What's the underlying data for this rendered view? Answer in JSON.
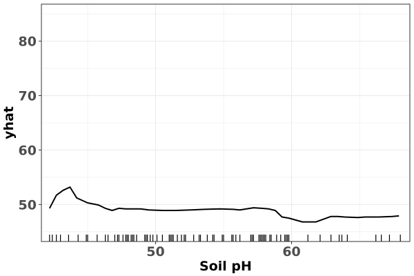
{
  "chart_data": {
    "type": "line",
    "title": "",
    "xlabel": "Soil pH",
    "ylabel": "yhat",
    "xlim": [
      41.6,
      68.7
    ],
    "ylim": [
      43.2,
      86.8
    ],
    "x_ticks": [
      50,
      60
    ],
    "y_ticks": [
      50,
      60,
      70,
      80
    ],
    "x_minor_ticks": [
      45,
      55,
      65
    ],
    "y_minor_ticks": [
      45,
      55,
      65,
      75,
      85
    ],
    "grid": true,
    "legend": "none",
    "series": [
      {
        "x": [
          42.2,
          42.7,
          43.2,
          43.7,
          44.2,
          45.0,
          45.8,
          46.3,
          46.8,
          47.3,
          47.8,
          48.3,
          48.9,
          49.5,
          50.5,
          51.5,
          52.6,
          53.6,
          54.7,
          55.7,
          56.2,
          57.2,
          57.8,
          58.3,
          58.8,
          59.3,
          59.8,
          60.8,
          61.8,
          62.9,
          63.4,
          63.9,
          64.9,
          65.4,
          66.4,
          67.4,
          67.9
        ],
        "y": [
          49.3,
          51.7,
          52.6,
          53.2,
          51.2,
          50.3,
          49.9,
          49.3,
          48.9,
          49.3,
          49.2,
          49.2,
          49.2,
          49.0,
          48.9,
          48.9,
          49.0,
          49.1,
          49.2,
          49.1,
          49.0,
          49.4,
          49.3,
          49.2,
          48.9,
          47.7,
          47.5,
          46.8,
          46.8,
          47.8,
          47.8,
          47.7,
          47.6,
          47.7,
          47.7,
          47.8,
          47.9
        ]
      }
    ],
    "rug": [
      42.2,
      42.4,
      42.7,
      43.0,
      43.6,
      44.3,
      44.9,
      45.0,
      45.7,
      46.3,
      46.5,
      47.0,
      47.2,
      47.3,
      47.6,
      47.8,
      47.9,
      48.0,
      48.2,
      48.3,
      48.4,
      48.6,
      49.2,
      49.3,
      49.4,
      49.6,
      49.8,
      50.1,
      50.5,
      51.0,
      51.1,
      51.2,
      51.3,
      51.6,
      51.9,
      52.1,
      52.2,
      52.8,
      53.2,
      53.3,
      53.8,
      54.2,
      54.3,
      54.9,
      55.0,
      55.6,
      55.7,
      55.9,
      56.2,
      57.0,
      57.1,
      57.2,
      57.6,
      57.7,
      57.8,
      57.9,
      58.0,
      58.1,
      58.4,
      58.5,
      58.9,
      59.2,
      59.5,
      59.6,
      59.7,
      59.8,
      61.2,
      62.1,
      62.9,
      63.5,
      63.7,
      64.1,
      66.2,
      66.6,
      67.2,
      68.0
    ],
    "colors": {
      "line": "#000000",
      "grid": "#ebebeb",
      "panel_border": "#333333",
      "rug": "#000000"
    }
  }
}
